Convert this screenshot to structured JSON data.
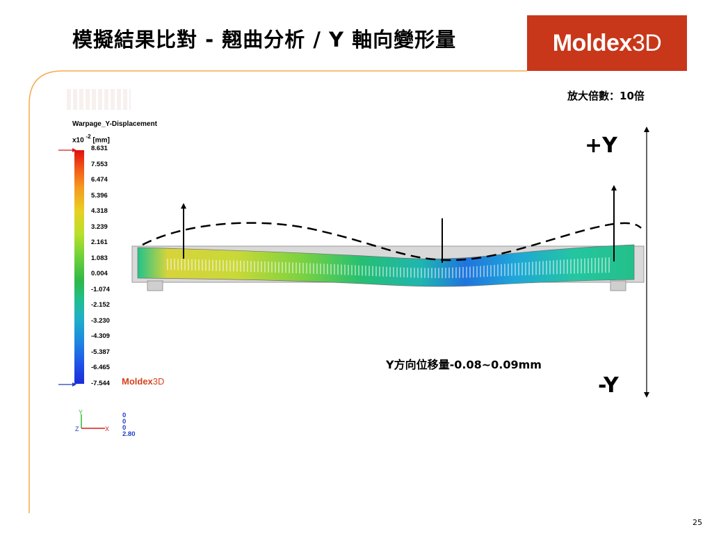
{
  "slide": {
    "title": "模擬結果比對 - 翹曲分析 / Y 軸向變形量",
    "page_number": "25",
    "magnification_note": "放大倍數：10倍",
    "plus_y_label": "+Y",
    "minus_y_label": "-Y",
    "displacement_note": "Y方向位移量-0.08~0.09mm"
  },
  "logo": {
    "brand": "Moldex",
    "brand_number": "3D",
    "background_color": "#c8371a"
  },
  "legend": {
    "title": "Warpage_Y-Displacement",
    "scale_prefix": "x10",
    "scale_exponent": "-2",
    "unit": "[mm]",
    "ticks": [
      "8.631",
      "7.553",
      "6.474",
      "5.396",
      "4.318",
      "3.239",
      "2.161",
      "1.083",
      "0.004",
      "-1.074",
      "-2.152",
      "-3.230",
      "-4.309",
      "-5.387",
      "-6.465",
      "-7.544"
    ],
    "watermark_brand": "Moldex",
    "watermark_number": "3D"
  },
  "axis_readout": {
    "values": [
      "0",
      "0",
      "0",
      "2.80"
    ],
    "icon": "xyz-axis-triad-icon"
  }
}
